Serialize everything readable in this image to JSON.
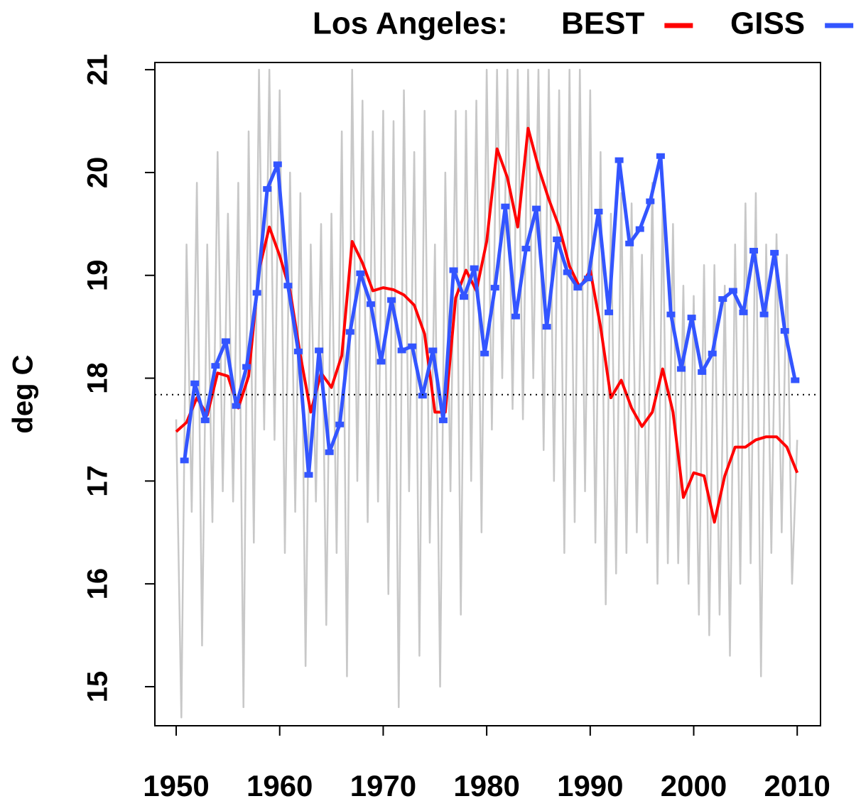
{
  "chart_data": {
    "type": "line",
    "title": "Los Angeles:",
    "ylabel": "deg C",
    "xlim": [
      1947.94,
      2012.25
    ],
    "ylim": [
      14.62,
      21.07
    ],
    "xticks": [
      1950,
      1960,
      1970,
      1980,
      1990,
      2000,
      2010
    ],
    "yticks": [
      15,
      16,
      17,
      18,
      19,
      20,
      21
    ],
    "hline": 17.84,
    "series": [
      {
        "color": "#c8c8c8",
        "x": [
          1950,
          1950.5,
          1951,
          1951.5,
          1952,
          1952.5,
          1953,
          1953.5,
          1954,
          1954.5,
          1955,
          1955.5,
          1956,
          1956.5,
          1957,
          1957.5,
          1958,
          1958.5,
          1959,
          1959.5,
          1960,
          1960.5,
          1961,
          1961.5,
          1962,
          1962.5,
          1963,
          1963.5,
          1964,
          1964.5,
          1965,
          1965.5,
          1966,
          1966.5,
          1967,
          1967.5,
          1968,
          1968.5,
          1969,
          1969.5,
          1970,
          1970.5,
          1971,
          1971.5,
          1972,
          1972.5,
          1973,
          1973.5,
          1974,
          1974.5,
          1975,
          1975.5,
          1976,
          1976.5,
          1977,
          1977.5,
          1978,
          1978.5,
          1979,
          1979.5,
          1980,
          1980.5,
          1981,
          1981.5,
          1982,
          1982.5,
          1983,
          1983.5,
          1984,
          1984.5,
          1985,
          1985.5,
          1986,
          1986.5,
          1987,
          1987.5,
          1988,
          1988.5,
          1989,
          1989.5,
          1990,
          1990.5,
          1991,
          1991.5,
          1992,
          1992.5,
          1993,
          1993.5,
          1994,
          1994.5,
          1995,
          1995.5,
          1996,
          1996.5,
          1997,
          1997.5,
          1998,
          1998.5,
          1999,
          1999.5,
          2000,
          2000.5,
          2001,
          2001.5,
          2002,
          2002.5,
          2003,
          2003.5,
          2004,
          2004.5,
          2005,
          2005.5,
          2006,
          2006.5,
          2007,
          2007.5,
          2008,
          2008.5,
          2009,
          2009.5,
          2010
        ],
        "values": [
          17.6,
          14.7,
          19.3,
          16.7,
          19.9,
          15.4,
          19.3,
          16.6,
          20.2,
          16.9,
          19.6,
          16.8,
          19.9,
          14.8,
          20.4,
          16.4,
          21.0,
          17.5,
          21.0,
          17.4,
          20.8,
          16.3,
          20.0,
          16.7,
          19.8,
          15.2,
          19.3,
          16.8,
          19.5,
          15.6,
          19.6,
          16.3,
          20.4,
          15.1,
          21.0,
          17.0,
          20.7,
          16.6,
          20.4,
          16.8,
          20.6,
          15.9,
          20.5,
          14.8,
          20.8,
          16.9,
          20.2,
          15.3,
          20.6,
          16.4,
          19.3,
          15.0,
          20.0,
          16.9,
          20.6,
          15.7,
          20.6,
          17.0,
          20.7,
          16.5,
          21.0,
          17.5,
          21.0,
          18.0,
          21.0,
          17.7,
          21.0,
          17.6,
          21.0,
          18.0,
          21.0,
          17.3,
          21.0,
          17.0,
          20.8,
          16.3,
          21.0,
          16.6,
          21.0,
          16.9,
          20.8,
          16.4,
          20.2,
          15.8,
          19.6,
          16.1,
          19.8,
          16.3,
          19.7,
          16.5,
          19.2,
          16.4,
          19.9,
          16.0,
          19.7,
          16.2,
          19.5,
          16.2,
          18.9,
          16.0,
          18.8,
          15.7,
          19.1,
          15.5,
          19.1,
          15.7,
          18.9,
          15.3,
          19.3,
          16.0,
          19.7,
          16.2,
          19.8,
          15.1,
          19.3,
          16.3,
          19.4,
          16.5,
          19.2,
          16.0,
          17.4
        ]
      },
      {
        "name": "BEST",
        "color": "#ff0000",
        "x": [
          1950,
          1951,
          1952,
          1953,
          1954,
          1955,
          1956,
          1957,
          1958,
          1959,
          1960,
          1961,
          1962,
          1963,
          1964,
          1965,
          1966,
          1967,
          1968,
          1969,
          1970,
          1971,
          1972,
          1973,
          1974,
          1975,
          1976,
          1977,
          1978,
          1979,
          1980,
          1981,
          1982,
          1983,
          1984,
          1985,
          1986,
          1987,
          1988,
          1989,
          1990,
          1991,
          1992,
          1993,
          1994,
          1995,
          1996,
          1997,
          1998,
          1999,
          2000,
          2001,
          2002,
          2003,
          2004,
          2005,
          2006,
          2007,
          2008,
          2009,
          2010
        ],
        "values": [
          17.48,
          17.57,
          17.81,
          17.64,
          18.05,
          18.02,
          17.71,
          18.02,
          19.05,
          19.47,
          19.19,
          18.85,
          18.22,
          17.67,
          18.05,
          17.91,
          18.22,
          19.33,
          19.12,
          18.85,
          18.88,
          18.86,
          18.81,
          18.71,
          18.43,
          17.67,
          17.67,
          18.78,
          19.05,
          18.85,
          19.33,
          20.23,
          19.95,
          19.47,
          20.43,
          20.05,
          19.74,
          19.47,
          19.09,
          18.88,
          19.05,
          18.5,
          17.81,
          17.98,
          17.71,
          17.53,
          17.67,
          18.09,
          17.67,
          16.84,
          17.08,
          17.05,
          16.6,
          17.05,
          17.33,
          17.33,
          17.4,
          17.43,
          17.43,
          17.33,
          17.08
        ]
      },
      {
        "name": "GISS",
        "color": "#3355ff",
        "markers": true,
        "x": [
          1950.8,
          1951.8,
          1952.8,
          1953.8,
          1954.8,
          1955.8,
          1956.8,
          1957.8,
          1958.8,
          1959.8,
          1960.8,
          1961.8,
          1962.8,
          1963.8,
          1964.8,
          1965.8,
          1966.8,
          1967.8,
          1968.8,
          1969.8,
          1970.8,
          1971.8,
          1972.8,
          1973.8,
          1974.8,
          1975.8,
          1976.8,
          1977.8,
          1978.8,
          1979.8,
          1980.8,
          1981.8,
          1982.8,
          1983.8,
          1984.8,
          1985.8,
          1986.8,
          1987.8,
          1988.8,
          1989.8,
          1990.8,
          1991.8,
          1992.8,
          1993.8,
          1994.8,
          1995.8,
          1996.8,
          1997.8,
          1998.8,
          1999.8,
          2000.8,
          2001.8,
          2002.8,
          2003.8,
          2004.8,
          2005.8,
          2006.8,
          2007.8,
          2008.8,
          2009.8
        ],
        "values": [
          17.2,
          17.95,
          17.59,
          18.12,
          18.36,
          17.73,
          18.11,
          18.83,
          19.84,
          20.08,
          18.9,
          18.26,
          17.06,
          18.27,
          17.28,
          17.55,
          18.45,
          19.02,
          18.72,
          18.16,
          18.76,
          18.27,
          18.31,
          17.83,
          18.27,
          17.59,
          19.05,
          18.79,
          19.07,
          18.24,
          18.88,
          19.67,
          18.6,
          19.26,
          19.65,
          18.5,
          19.35,
          19.03,
          18.88,
          18.97,
          19.62,
          18.64,
          20.12,
          19.31,
          19.45,
          19.72,
          20.16,
          18.62,
          18.09,
          18.59,
          18.06,
          18.24,
          18.77,
          18.85,
          18.64,
          19.24,
          18.62,
          19.22,
          18.46,
          17.98
        ]
      }
    ]
  }
}
